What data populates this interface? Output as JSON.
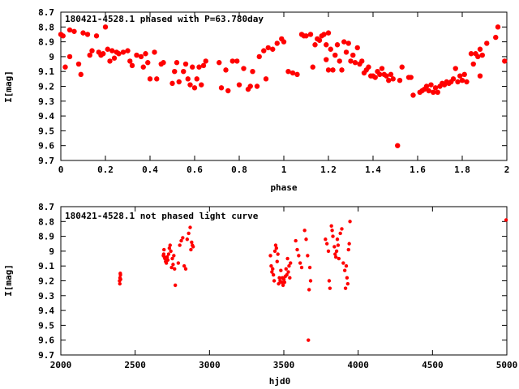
{
  "chart_data": [
    {
      "type": "scatter",
      "title": "180421-4528.1 phased with P=63.780day",
      "xlabel": "phase",
      "ylabel": "I[mag]",
      "xlim": [
        0,
        2
      ],
      "ylim": [
        9.7,
        8.7
      ],
      "y_inverted": true,
      "grid": false,
      "marker_color": "#ff0000",
      "xticks": [
        "0",
        "0.2",
        "0.4",
        "0.6",
        "0.8",
        "1",
        "1.2",
        "1.4",
        "1.6",
        "1.8",
        "2"
      ],
      "yticks": [
        "8.7",
        "8.8",
        "8.9",
        "9",
        "9.1",
        "9.2",
        "9.3",
        "9.4",
        "9.5",
        "9.6",
        "9.7"
      ],
      "points": [
        [
          0.0,
          8.85
        ],
        [
          0.01,
          8.86
        ],
        [
          0.02,
          9.07
        ],
        [
          0.04,
          8.82
        ],
        [
          0.04,
          9.0
        ],
        [
          0.06,
          8.83
        ],
        [
          0.08,
          9.05
        ],
        [
          0.09,
          9.12
        ],
        [
          0.1,
          8.84
        ],
        [
          0.12,
          8.85
        ],
        [
          0.13,
          8.99
        ],
        [
          0.14,
          8.96
        ],
        [
          0.16,
          8.86
        ],
        [
          0.17,
          8.97
        ],
        [
          0.18,
          8.99
        ],
        [
          0.19,
          8.98
        ],
        [
          0.2,
          8.8
        ],
        [
          0.21,
          8.95
        ],
        [
          0.22,
          9.03
        ],
        [
          0.23,
          8.96
        ],
        [
          0.24,
          9.01
        ],
        [
          0.25,
          8.97
        ],
        [
          0.26,
          8.98
        ],
        [
          0.28,
          8.97
        ],
        [
          0.3,
          8.96
        ],
        [
          0.31,
          9.03
        ],
        [
          0.32,
          9.06
        ],
        [
          0.34,
          8.99
        ],
        [
          0.36,
          9.0
        ],
        [
          0.37,
          9.07
        ],
        [
          0.38,
          8.98
        ],
        [
          0.39,
          9.04
        ],
        [
          0.4,
          9.15
        ],
        [
          0.42,
          8.97
        ],
        [
          0.43,
          9.15
        ],
        [
          0.45,
          9.05
        ],
        [
          0.46,
          9.04
        ],
        [
          0.5,
          9.18
        ],
        [
          0.51,
          9.1
        ],
        [
          0.52,
          9.04
        ],
        [
          0.53,
          9.17
        ],
        [
          0.55,
          9.1
        ],
        [
          0.56,
          9.05
        ],
        [
          0.57,
          9.15
        ],
        [
          0.58,
          9.19
        ],
        [
          0.59,
          9.07
        ],
        [
          0.6,
          9.21
        ],
        [
          0.61,
          9.15
        ],
        [
          0.62,
          9.07
        ],
        [
          0.63,
          9.19
        ],
        [
          0.64,
          9.06
        ],
        [
          0.65,
          9.03
        ],
        [
          0.71,
          9.04
        ],
        [
          0.72,
          9.21
        ],
        [
          0.74,
          9.09
        ],
        [
          0.75,
          9.23
        ],
        [
          0.77,
          9.03
        ],
        [
          0.79,
          9.03
        ],
        [
          0.8,
          9.19
        ],
        [
          0.82,
          9.08
        ],
        [
          0.84,
          9.22
        ],
        [
          0.85,
          9.2
        ],
        [
          0.86,
          9.1
        ],
        [
          0.88,
          9.2
        ],
        [
          0.89,
          9.0
        ],
        [
          0.91,
          8.96
        ],
        [
          0.92,
          9.15
        ],
        [
          0.93,
          8.94
        ],
        [
          0.95,
          8.95
        ],
        [
          0.97,
          8.91
        ],
        [
          0.99,
          8.88
        ],
        [
          1.0,
          8.9
        ],
        [
          1.02,
          9.1
        ],
        [
          1.04,
          9.11
        ],
        [
          1.06,
          9.12
        ],
        [
          1.08,
          8.85
        ],
        [
          1.09,
          8.86
        ],
        [
          1.1,
          8.86
        ],
        [
          1.12,
          8.85
        ],
        [
          1.13,
          9.07
        ],
        [
          1.14,
          8.92
        ],
        [
          1.15,
          8.88
        ],
        [
          1.16,
          8.89
        ],
        [
          1.17,
          8.86
        ],
        [
          1.18,
          8.85
        ],
        [
          1.19,
          8.92
        ],
        [
          1.19,
          9.02
        ],
        [
          1.2,
          8.84
        ],
        [
          1.2,
          9.09
        ],
        [
          1.21,
          8.95
        ],
        [
          1.22,
          9.09
        ],
        [
          1.23,
          8.99
        ],
        [
          1.24,
          8.92
        ],
        [
          1.25,
          9.03
        ],
        [
          1.26,
          9.09
        ],
        [
          1.27,
          8.9
        ],
        [
          1.28,
          8.97
        ],
        [
          1.29,
          8.91
        ],
        [
          1.3,
          9.03
        ],
        [
          1.31,
          8.99
        ],
        [
          1.32,
          9.04
        ],
        [
          1.33,
          8.94
        ],
        [
          1.34,
          9.05
        ],
        [
          1.35,
          9.03
        ],
        [
          1.36,
          9.11
        ],
        [
          1.37,
          9.09
        ],
        [
          1.38,
          9.07
        ],
        [
          1.39,
          9.13
        ],
        [
          1.4,
          9.13
        ],
        [
          1.41,
          9.14
        ],
        [
          1.42,
          9.1
        ],
        [
          1.43,
          9.12
        ],
        [
          1.44,
          9.08
        ],
        [
          1.45,
          9.12
        ],
        [
          1.46,
          9.13
        ],
        [
          1.47,
          9.16
        ],
        [
          1.48,
          9.12
        ],
        [
          1.49,
          9.15
        ],
        [
          1.51,
          9.6
        ],
        [
          1.52,
          9.16
        ],
        [
          1.53,
          9.07
        ],
        [
          1.56,
          9.14
        ],
        [
          1.57,
          9.14
        ],
        [
          1.58,
          9.26
        ],
        [
          1.61,
          9.24
        ],
        [
          1.62,
          9.23
        ],
        [
          1.63,
          9.22
        ],
        [
          1.64,
          9.2
        ],
        [
          1.65,
          9.23
        ],
        [
          1.66,
          9.19
        ],
        [
          1.67,
          9.24
        ],
        [
          1.68,
          9.21
        ],
        [
          1.69,
          9.24
        ],
        [
          1.7,
          9.2
        ],
        [
          1.71,
          9.18
        ],
        [
          1.72,
          9.19
        ],
        [
          1.73,
          9.17
        ],
        [
          1.74,
          9.18
        ],
        [
          1.75,
          9.17
        ],
        [
          1.76,
          9.15
        ],
        [
          1.77,
          9.08
        ],
        [
          1.78,
          9.17
        ],
        [
          1.79,
          9.13
        ],
        [
          1.8,
          9.16
        ],
        [
          1.81,
          9.12
        ],
        [
          1.82,
          9.17
        ],
        [
          1.84,
          8.98
        ],
        [
          1.85,
          9.05
        ],
        [
          1.86,
          8.98
        ],
        [
          1.87,
          9.0
        ],
        [
          1.88,
          8.95
        ],
        [
          1.88,
          9.13
        ],
        [
          1.89,
          8.99
        ],
        [
          1.91,
          8.91
        ],
        [
          1.95,
          8.87
        ],
        [
          1.96,
          8.8
        ],
        [
          1.99,
          9.03
        ]
      ]
    },
    {
      "type": "scatter",
      "title": "180421-4528.1 not phased light curve",
      "xlabel": "hjd0",
      "ylabel": "I[mag]",
      "xlim": [
        2000,
        5000
      ],
      "ylim": [
        9.7,
        8.7
      ],
      "y_inverted": true,
      "grid": false,
      "marker_color": "#ff0000",
      "xticks": [
        "2000",
        "2500",
        "3000",
        "3500",
        "4000",
        "4500",
        "5000"
      ],
      "yticks": [
        "8.7",
        "8.8",
        "8.9",
        "9",
        "9.1",
        "9.2",
        "9.3",
        "9.4",
        "9.5",
        "9.6",
        "9.7"
      ],
      "points": [
        [
          2395,
          9.2
        ],
        [
          2397,
          9.22
        ],
        [
          2398,
          9.18
        ],
        [
          2400,
          9.15
        ],
        [
          2401,
          9.16
        ],
        [
          2402,
          9.19
        ],
        [
          2690,
          9.03
        ],
        [
          2692,
          9.02
        ],
        [
          2694,
          8.99
        ],
        [
          2697,
          9.04
        ],
        [
          2700,
          9.05
        ],
        [
          2705,
          9.07
        ],
        [
          2710,
          9.08
        ],
        [
          2715,
          9.04
        ],
        [
          2720,
          9.06
        ],
        [
          2725,
          9.02
        ],
        [
          2730,
          8.98
        ],
        [
          2735,
          8.96
        ],
        [
          2740,
          9.0
        ],
        [
          2745,
          9.11
        ],
        [
          2750,
          9.05
        ],
        [
          2755,
          9.09
        ],
        [
          2760,
          9.03
        ],
        [
          2765,
          9.12
        ],
        [
          2770,
          9.23
        ],
        [
          2790,
          9.08
        ],
        [
          2800,
          8.96
        ],
        [
          2810,
          8.93
        ],
        [
          2820,
          8.91
        ],
        [
          2830,
          9.1
        ],
        [
          2840,
          9.12
        ],
        [
          2850,
          8.92
        ],
        [
          2860,
          8.88
        ],
        [
          2870,
          8.84
        ],
        [
          2875,
          8.99
        ],
        [
          2880,
          8.94
        ],
        [
          2885,
          8.96
        ],
        [
          2890,
          8.97
        ],
        [
          3410,
          9.03
        ],
        [
          3415,
          9.1
        ],
        [
          3420,
          9.14
        ],
        [
          3425,
          9.12
        ],
        [
          3430,
          9.16
        ],
        [
          3435,
          9.2
        ],
        [
          3440,
          9.0
        ],
        [
          3445,
          8.96
        ],
        [
          3450,
          8.98
        ],
        [
          3455,
          9.07
        ],
        [
          3460,
          9.02
        ],
        [
          3465,
          9.22
        ],
        [
          3470,
          9.18
        ],
        [
          3475,
          9.2
        ],
        [
          3480,
          9.13
        ],
        [
          3485,
          9.21
        ],
        [
          3490,
          9.18
        ],
        [
          3495,
          9.23
        ],
        [
          3500,
          9.19
        ],
        [
          3505,
          9.21
        ],
        [
          3510,
          9.17
        ],
        [
          3515,
          9.12
        ],
        [
          3520,
          9.16
        ],
        [
          3525,
          9.05
        ],
        [
          3530,
          9.14
        ],
        [
          3535,
          9.1
        ],
        [
          3540,
          9.18
        ],
        [
          3545,
          9.08
        ],
        [
          3580,
          8.93
        ],
        [
          3590,
          8.99
        ],
        [
          3600,
          9.03
        ],
        [
          3610,
          9.08
        ],
        [
          3620,
          9.11
        ],
        [
          3640,
          8.86
        ],
        [
          3650,
          8.92
        ],
        [
          3660,
          9.03
        ],
        [
          3665,
          9.6
        ],
        [
          3670,
          9.26
        ],
        [
          3675,
          9.11
        ],
        [
          3680,
          9.2
        ],
        [
          3780,
          8.92
        ],
        [
          3790,
          8.95
        ],
        [
          3800,
          9.0
        ],
        [
          3805,
          9.2
        ],
        [
          3810,
          9.25
        ],
        [
          3820,
          8.83
        ],
        [
          3825,
          8.86
        ],
        [
          3830,
          8.9
        ],
        [
          3840,
          8.97
        ],
        [
          3845,
          9.02
        ],
        [
          3850,
          9.04
        ],
        [
          3855,
          9.0
        ],
        [
          3860,
          8.92
        ],
        [
          3865,
          8.96
        ],
        [
          3870,
          9.05
        ],
        [
          3880,
          8.88
        ],
        [
          3890,
          8.85
        ],
        [
          3900,
          9.08
        ],
        [
          3910,
          9.13
        ],
        [
          3915,
          9.25
        ],
        [
          3920,
          9.1
        ],
        [
          3925,
          9.18
        ],
        [
          3930,
          9.22
        ],
        [
          3935,
          8.99
        ],
        [
          3940,
          8.95
        ],
        [
          3945,
          8.8
        ],
        [
          4995,
          8.79
        ]
      ]
    }
  ]
}
